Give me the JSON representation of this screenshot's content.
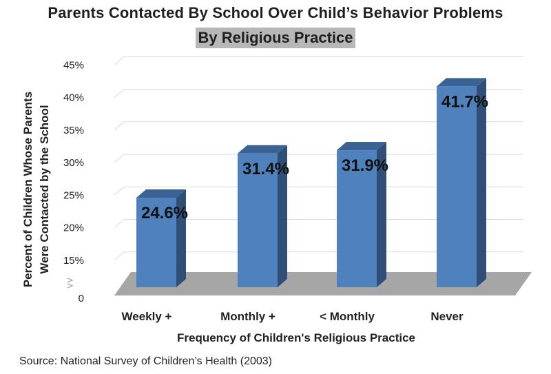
{
  "chart_data": {
    "type": "bar",
    "title": "Parents Contacted By School Over Child’s Behavior Problems",
    "subtitle": "By Religious Practice",
    "xlabel": "Frequency of Children's Religious Practice",
    "ylabel": [
      "Percent of Children Whose Parents",
      "Were Contacted by the School"
    ],
    "categories": [
      "Weekly +",
      "Monthly +",
      "< Monthly",
      "Never"
    ],
    "values": [
      24.6,
      31.4,
      31.9,
      41.7
    ],
    "data_labels": [
      "24.6%",
      "31.4%",
      "31.9%",
      "41.7%"
    ],
    "y_ticks": [
      {
        "value": 0,
        "label": "0"
      },
      {
        "value": 15,
        "label": "15%"
      },
      {
        "value": 20,
        "label": "20%"
      },
      {
        "value": 25,
        "label": "25%"
      },
      {
        "value": 30,
        "label": "30%"
      },
      {
        "value": 35,
        "label": "35%"
      },
      {
        "value": 40,
        "label": "40%"
      },
      {
        "value": 45,
        "label": "45%"
      }
    ],
    "ylim": [
      10,
      45
    ],
    "axis_break": true,
    "grid": true,
    "bar_colors": {
      "front": "#4f81bd",
      "side": "#2f4f77",
      "top": "#3a6293",
      "floor": "#a6a6a6"
    }
  },
  "source": "Source:  National Survey of Children’s Health (2003)"
}
